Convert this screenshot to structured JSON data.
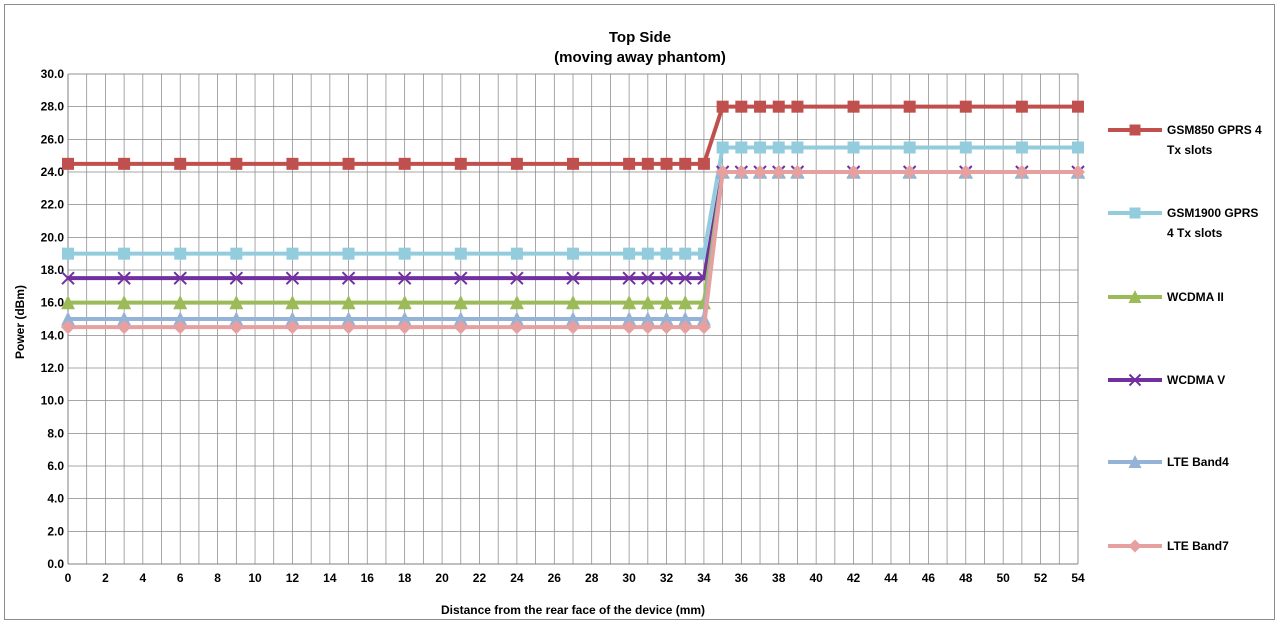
{
  "chart_data": {
    "type": "line",
    "title": "Top Side",
    "subtitle": "(moving away phantom)",
    "xlabel": "Distance from the rear face of the device (mm)",
    "ylabel": "Power (dBm)",
    "ylim": [
      0,
      30
    ],
    "xlim": [
      0,
      54
    ],
    "x_ticks": [
      0,
      2,
      4,
      6,
      8,
      10,
      12,
      14,
      16,
      18,
      20,
      22,
      24,
      26,
      28,
      30,
      32,
      34,
      36,
      38,
      40,
      42,
      44,
      46,
      48,
      50,
      52,
      54
    ],
    "y_ticks": [
      "0.0",
      "2.0",
      "4.0",
      "6.0",
      "8.0",
      "10.0",
      "12.0",
      "14.0",
      "16.0",
      "18.0",
      "20.0",
      "22.0",
      "24.0",
      "26.0",
      "28.0",
      "30.0"
    ],
    "grid": true,
    "legend_position": "right",
    "x": [
      0,
      3,
      6,
      9,
      12,
      15,
      18,
      21,
      24,
      27,
      30,
      31,
      32,
      33,
      34,
      35,
      36,
      37,
      38,
      39,
      42,
      45,
      48,
      51,
      54
    ],
    "series": [
      {
        "name": "GSM850 GPRS 4 Tx slots",
        "legend_lines": [
          "GSM850 GPRS 4",
          "Tx slots"
        ],
        "color": "#c0504d",
        "marker": "square",
        "values": [
          24.5,
          24.5,
          24.5,
          24.5,
          24.5,
          24.5,
          24.5,
          24.5,
          24.5,
          24.5,
          24.5,
          24.5,
          24.5,
          24.5,
          24.5,
          28,
          28,
          28,
          28,
          28,
          28,
          28,
          28,
          28,
          28
        ]
      },
      {
        "name": "GSM1900 GPRS 4 Tx slots",
        "legend_lines": [
          "GSM1900 GPRS",
          "4 Tx slots"
        ],
        "color": "#93cddd",
        "marker": "square",
        "values": [
          19,
          19,
          19,
          19,
          19,
          19,
          19,
          19,
          19,
          19,
          19,
          19,
          19,
          19,
          19,
          25.5,
          25.5,
          25.5,
          25.5,
          25.5,
          25.5,
          25.5,
          25.5,
          25.5,
          25.5
        ]
      },
      {
        "name": "WCDMA II",
        "legend_lines": [
          "WCDMA II"
        ],
        "color": "#9bbb59",
        "marker": "triangle",
        "values": [
          16,
          16,
          16,
          16,
          16,
          16,
          16,
          16,
          16,
          16,
          16,
          16,
          16,
          16,
          16,
          24,
          24,
          24,
          24,
          24,
          24,
          24,
          24,
          24,
          24
        ]
      },
      {
        "name": "WCDMA V",
        "legend_lines": [
          "WCDMA V"
        ],
        "color": "#7030a0",
        "marker": "x",
        "values": [
          17.5,
          17.5,
          17.5,
          17.5,
          17.5,
          17.5,
          17.5,
          17.5,
          17.5,
          17.5,
          17.5,
          17.5,
          17.5,
          17.5,
          17.5,
          24,
          24,
          24,
          24,
          24,
          24,
          24,
          24,
          24,
          24
        ]
      },
      {
        "name": "LTE Band4",
        "legend_lines": [
          "LTE Band4"
        ],
        "color": "#95b3d7",
        "marker": "triangle",
        "values": [
          15,
          15,
          15,
          15,
          15,
          15,
          15,
          15,
          15,
          15,
          15,
          15,
          15,
          15,
          15,
          24,
          24,
          24,
          24,
          24,
          24,
          24,
          24,
          24,
          24
        ]
      },
      {
        "name": "LTE Band7",
        "legend_lines": [
          "LTE Band7"
        ],
        "color": "#e6a0a0",
        "marker": "diamond",
        "values": [
          14.5,
          14.5,
          14.5,
          14.5,
          14.5,
          14.5,
          14.5,
          14.5,
          14.5,
          14.5,
          14.5,
          14.5,
          14.5,
          14.5,
          14.5,
          24,
          24,
          24,
          24,
          24,
          24,
          24,
          24,
          24,
          24
        ]
      }
    ]
  }
}
